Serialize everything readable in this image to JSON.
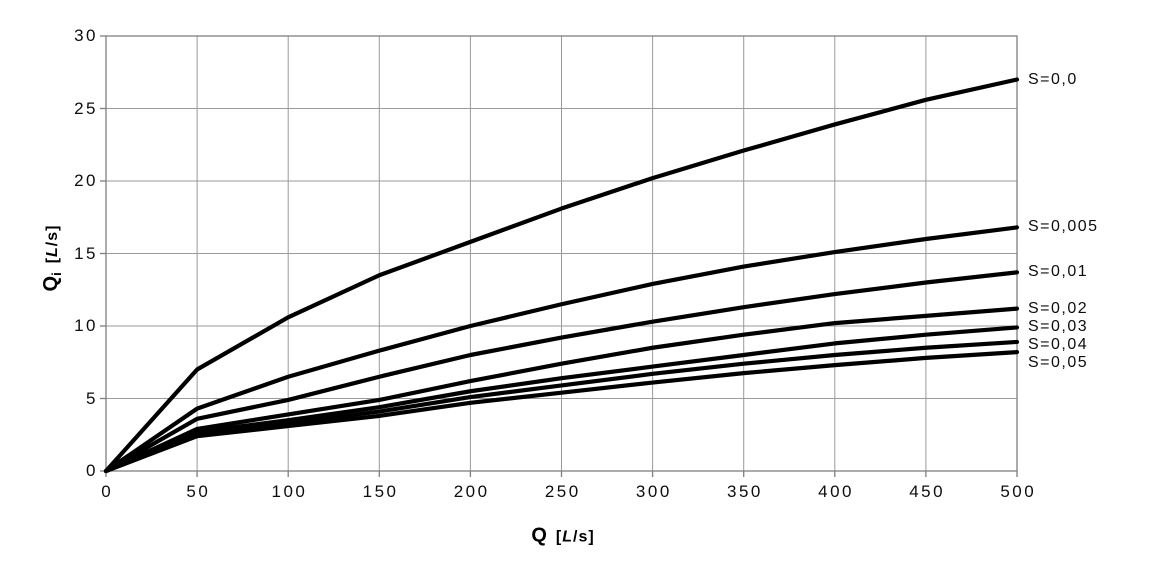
{
  "chart_data": {
    "type": "line",
    "x": [
      0,
      50,
      100,
      150,
      200,
      250,
      300,
      350,
      400,
      450,
      500
    ],
    "xlim": [
      0,
      500
    ],
    "ylim": [
      0,
      30
    ],
    "x_ticks": [
      0,
      50,
      100,
      150,
      200,
      250,
      300,
      350,
      400,
      450,
      500
    ],
    "y_ticks": [
      0,
      5,
      10,
      15,
      20,
      25,
      30
    ],
    "grid": true,
    "legend_position": "right-of-plot-at-curve-ends",
    "xlabel": {
      "symbol": "Q",
      "unit_open": "[",
      "unit_letter": "L",
      "unit_close": "/s]"
    },
    "ylabel": {
      "symbol": "Q",
      "subscript": "i",
      "unit_open": "[",
      "unit_letter": "L",
      "unit_close": "/s]"
    },
    "colors": {
      "curve": "#000000",
      "grid": "#9a9a9a",
      "border": "#7f7f7f",
      "text": "#000000",
      "background": "#ffffff"
    },
    "series": [
      {
        "name": "S=0,0",
        "label": "S=0,0",
        "values": [
          0,
          7.0,
          10.6,
          13.5,
          15.8,
          18.1,
          20.2,
          22.1,
          23.9,
          25.6,
          27.0
        ]
      },
      {
        "name": "S=0,005",
        "label": "S=0,005",
        "values": [
          0,
          4.3,
          6.5,
          8.3,
          10.0,
          11.5,
          12.9,
          14.1,
          15.1,
          16.0,
          16.8
        ]
      },
      {
        "name": "S=0,01",
        "label": "S=0,01",
        "values": [
          0,
          3.6,
          4.9,
          6.5,
          8.0,
          9.2,
          10.3,
          11.3,
          12.2,
          13.0,
          13.7
        ]
      },
      {
        "name": "S=0,02",
        "label": "S=0,02",
        "values": [
          0,
          2.9,
          3.9,
          4.9,
          6.2,
          7.4,
          8.5,
          9.4,
          10.2,
          10.7,
          11.2
        ]
      },
      {
        "name": "S=0,03",
        "label": "S=0,03",
        "values": [
          0,
          2.7,
          3.5,
          4.4,
          5.5,
          6.4,
          7.2,
          8.0,
          8.8,
          9.4,
          9.9
        ]
      },
      {
        "name": "S=0,04",
        "label": "S=0,04",
        "values": [
          0,
          2.5,
          3.3,
          4.1,
          5.1,
          5.9,
          6.7,
          7.4,
          8.0,
          8.5,
          8.9
        ]
      },
      {
        "name": "S=0,05",
        "label": "S=0,05",
        "values": [
          0,
          2.4,
          3.1,
          3.8,
          4.7,
          5.4,
          6.1,
          6.75,
          7.3,
          7.8,
          8.2
        ]
      }
    ]
  }
}
